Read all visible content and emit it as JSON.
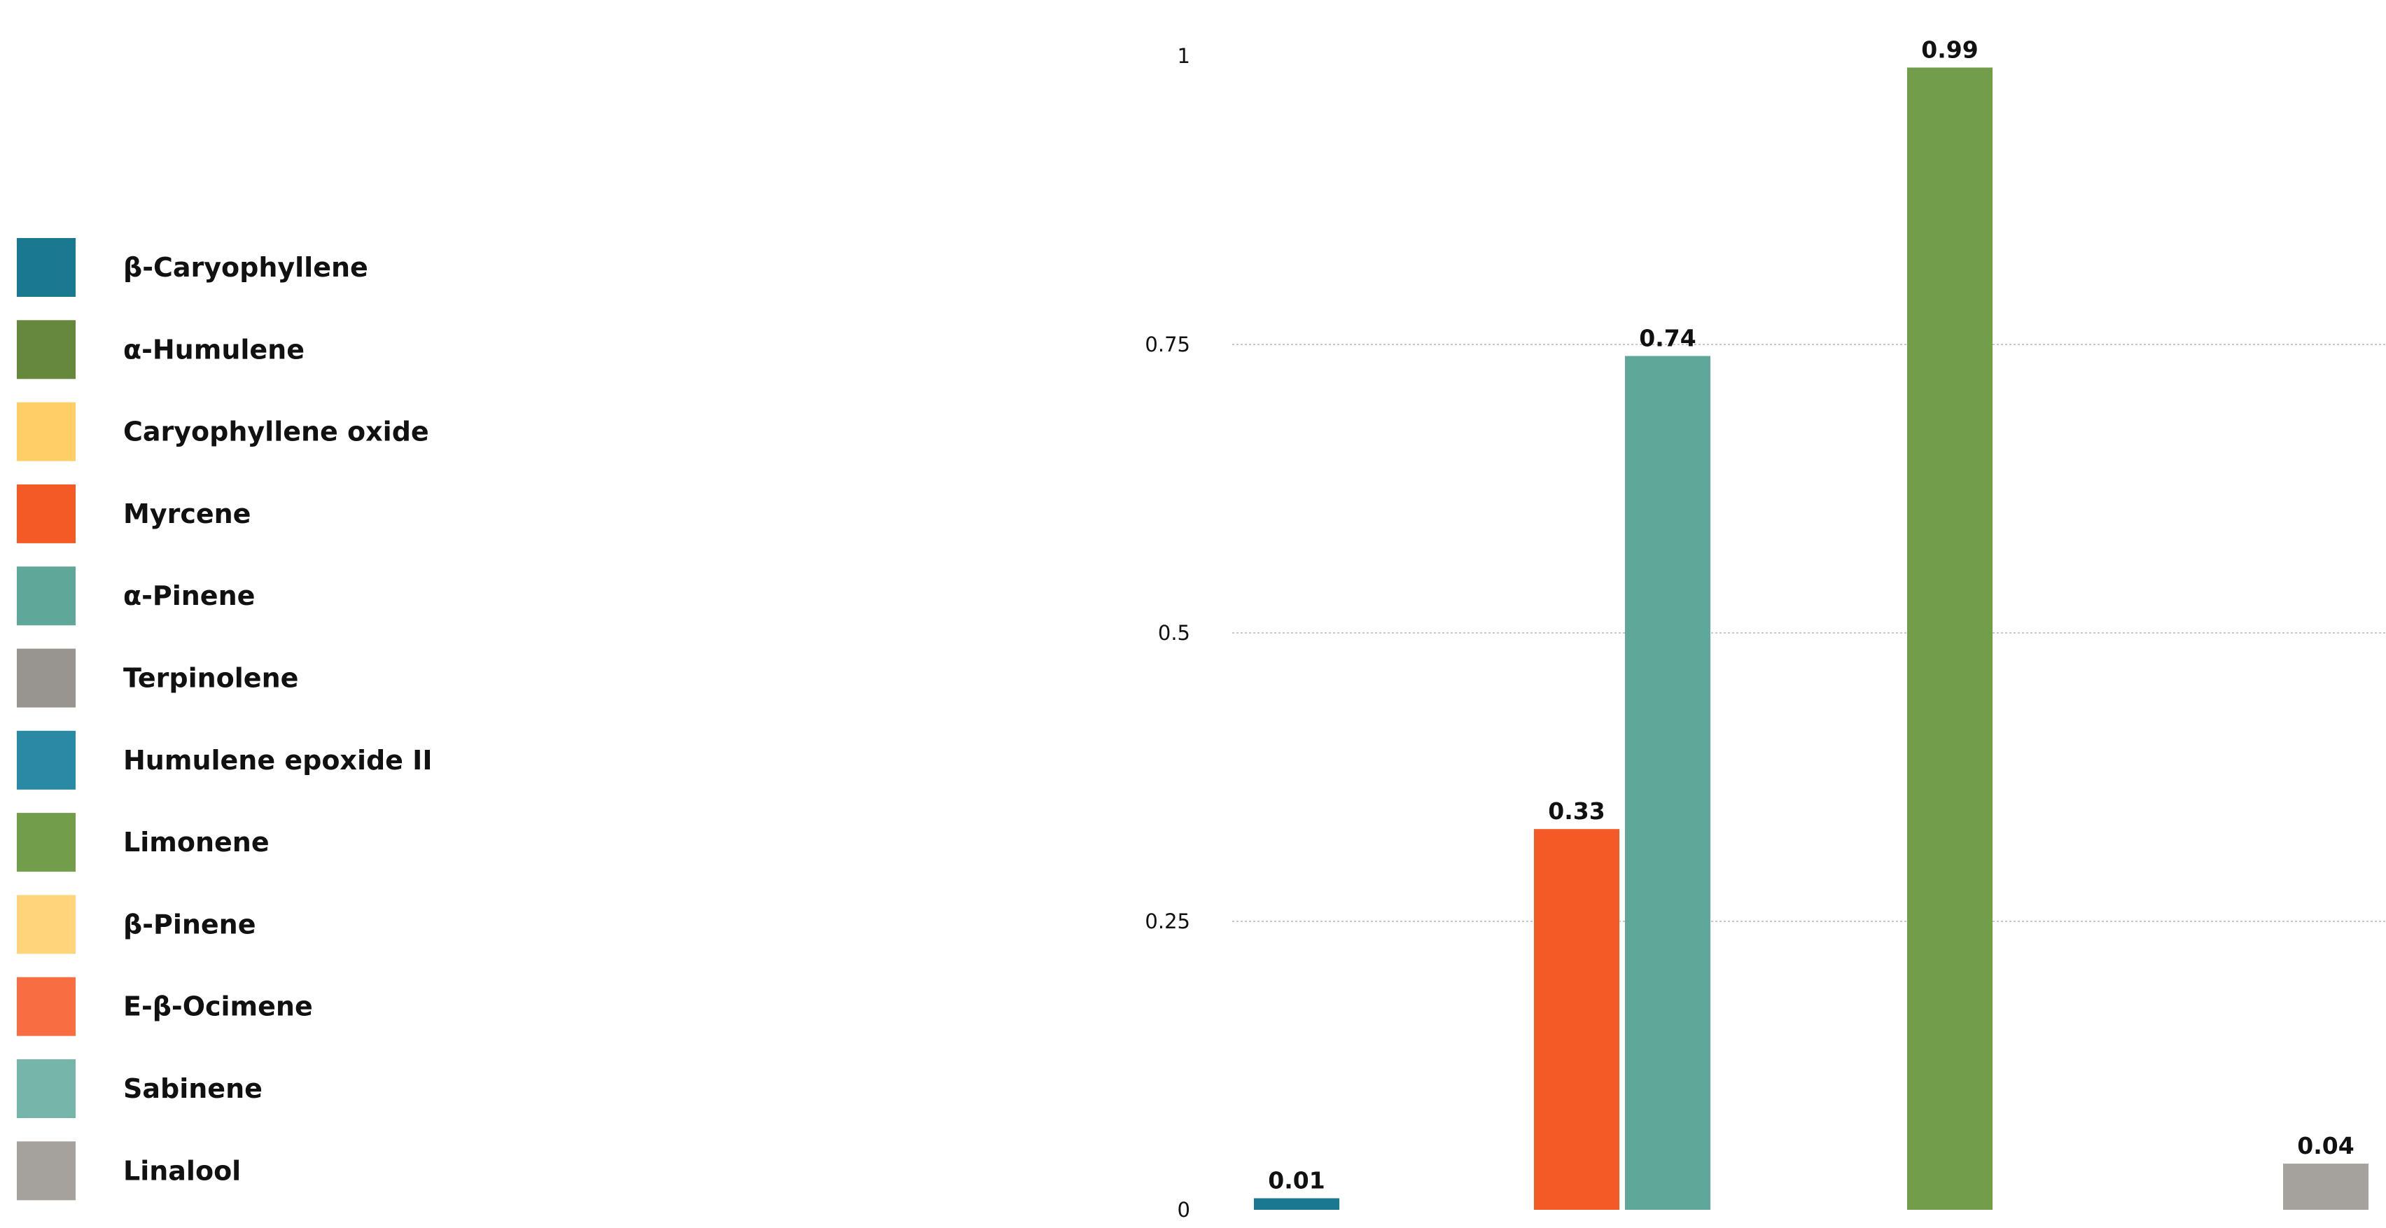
{
  "chart_data": {
    "type": "bar",
    "title": "",
    "xlabel": "",
    "ylabel": "",
    "ylim": [
      0,
      1
    ],
    "yticks": [
      0,
      0.25,
      0.5,
      0.75,
      1
    ],
    "ytick_labels": [
      "0",
      "0.25",
      "0.5",
      "0.75",
      "1"
    ],
    "grid": true,
    "legend_position": "left",
    "series": [
      {
        "name": "β-Caryophyllene",
        "color": "#1B7891",
        "value": 0.01,
        "label": "0.01"
      },
      {
        "name": "α-Humulene",
        "color": "#65883C",
        "value": null,
        "label": ""
      },
      {
        "name": "Caryophyllene oxide",
        "color": "#FFCE67",
        "value": null,
        "label": ""
      },
      {
        "name": "Myrcene",
        "color": "#F45A26",
        "value": 0.33,
        "label": "0.33"
      },
      {
        "name": "α-Pinene",
        "color": "#5FA798",
        "value": 0.74,
        "label": "0.74"
      },
      {
        "name": "Terpinolene",
        "color": "#98948F",
        "value": null,
        "label": ""
      },
      {
        "name": "Humulene epoxide II",
        "color": "#2A8AA5",
        "value": null,
        "label": ""
      },
      {
        "name": "Limonene",
        "color": "#729D4A",
        "value": 0.99,
        "label": "0.99"
      },
      {
        "name": "β-Pinene",
        "color": "#FFD47A",
        "value": null,
        "label": ""
      },
      {
        "name": "E-β-Ocimene",
        "color": "#F86E42",
        "value": null,
        "label": ""
      },
      {
        "name": "Sabinene",
        "color": "#76B5A9",
        "value": null,
        "label": ""
      },
      {
        "name": "Linalool",
        "color": "#A5A19C",
        "value": 0.04,
        "label": "0.04"
      }
    ]
  }
}
